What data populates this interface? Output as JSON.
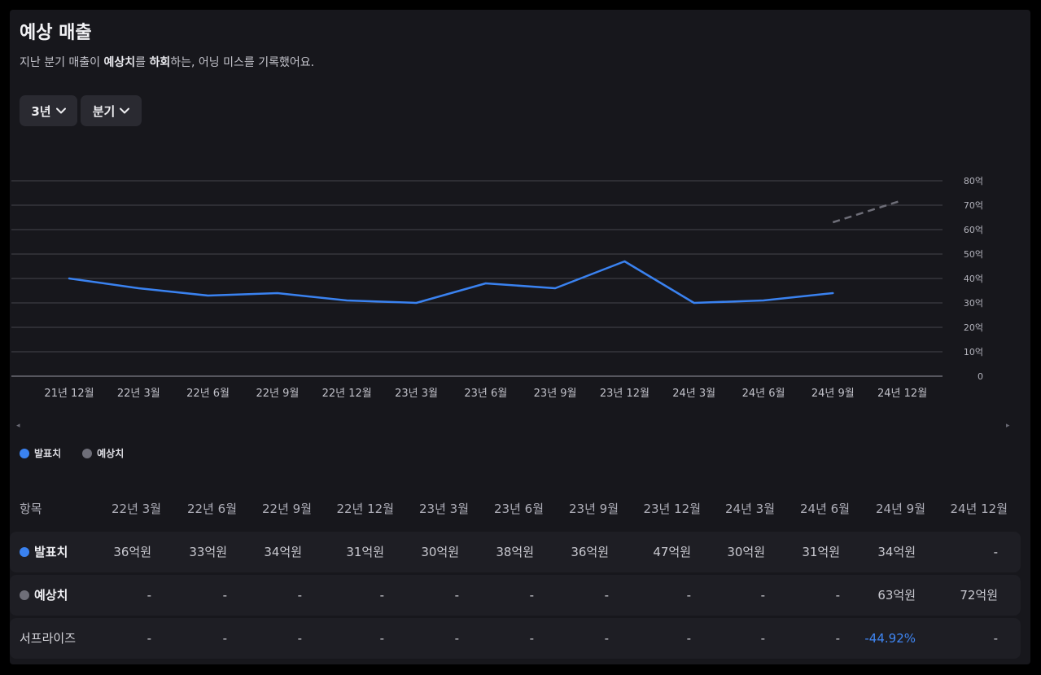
{
  "header": {
    "title": "예상 매출",
    "subtitle_prefix": "지난 분기 매출이 ",
    "subtitle_bold1": "예상치",
    "subtitle_mid": "를 ",
    "subtitle_bold2": "하회",
    "subtitle_suffix": "하는, 어닝 미스를 기록했어요."
  },
  "controls": {
    "period": "3년",
    "interval": "분기"
  },
  "colors": {
    "actual": "#3a82f0",
    "estimate": "#6e6e78"
  },
  "chart_data": {
    "type": "line",
    "categories": [
      "21년 12월",
      "22년 3월",
      "22년 6월",
      "22년 9월",
      "22년 12월",
      "23년 3월",
      "23년 6월",
      "23년 9월",
      "23년 12월",
      "24년 3월",
      "24년 6월",
      "24년 9월",
      "24년 12월"
    ],
    "yticks": [
      "0",
      "10억",
      "20억",
      "30억",
      "40억",
      "50억",
      "60억",
      "70억",
      "80억"
    ],
    "ylim": [
      0,
      80
    ],
    "grid": true,
    "y_axis_side": "right",
    "series": [
      {
        "name": "발표치",
        "values": [
          40,
          36,
          33,
          34,
          31,
          30,
          38,
          36,
          47,
          30,
          31,
          34,
          null
        ]
      },
      {
        "name": "예상치",
        "values": [
          null,
          null,
          null,
          null,
          null,
          null,
          null,
          null,
          null,
          null,
          null,
          63,
          72
        ],
        "style": "dashed"
      }
    ]
  },
  "legend": [
    {
      "label": "발표치"
    },
    {
      "label": "예상치"
    }
  ],
  "table": {
    "header_label": "항목",
    "columns": [
      "22년 3월",
      "22년 6월",
      "22년 9월",
      "22년 12월",
      "23년 3월",
      "23년 6월",
      "23년 9월",
      "23년 12월",
      "24년 3월",
      "24년 6월",
      "24년 9월",
      "24년 12월"
    ],
    "rows": [
      {
        "label": "발표치",
        "values": [
          "36억원",
          "33억원",
          "34억원",
          "31억원",
          "30억원",
          "38억원",
          "36억원",
          "47억원",
          "30억원",
          "31억원",
          "34억원",
          "-"
        ]
      },
      {
        "label": "예상치",
        "values": [
          "-",
          "-",
          "-",
          "-",
          "-",
          "-",
          "-",
          "-",
          "-",
          "-",
          "63억원",
          "72억원"
        ]
      },
      {
        "label": "서프라이즈",
        "values": [
          "-",
          "-",
          "-",
          "-",
          "-",
          "-",
          "-",
          "-",
          "-",
          "-",
          "-44.92%",
          "-"
        ]
      }
    ]
  }
}
